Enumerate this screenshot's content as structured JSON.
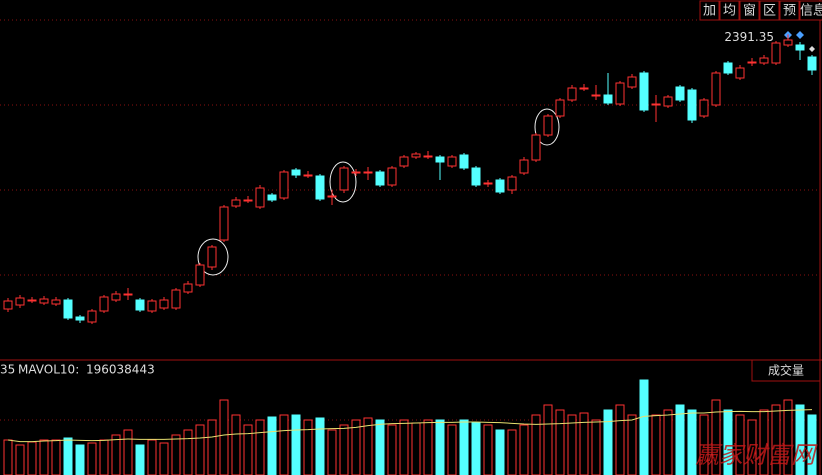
{
  "chart_data": {
    "type": "candlestick",
    "buttons": [
      "加",
      "均",
      "窗",
      "区",
      "预",
      "信息"
    ],
    "open": [
      1842,
      1850,
      1860,
      1854,
      1852,
      1860,
      1826,
      1816,
      1838,
      1860,
      1872,
      1860,
      1838,
      1844,
      1844,
      1876,
      1890,
      1926,
      1980,
      2048,
      2060,
      2046,
      2070,
      2064,
      2120,
      2110,
      2108,
      2068,
      2080,
      2116,
      2116,
      2116,
      2090,
      2128,
      2146,
      2148,
      2146,
      2128,
      2150,
      2124,
      2094,
      2100,
      2080,
      2114,
      2140,
      2190,
      2228,
      2260,
      2284,
      2270,
      2270,
      2252,
      2286,
      2314,
      2252,
      2248,
      2286,
      2280,
      2228,
      2250,
      2334,
      2304,
      2336,
      2334,
      2334,
      2370,
      2370,
      2346
    ],
    "high": [
      1864,
      1870,
      1866,
      1868,
      1866,
      1864,
      1830,
      1842,
      1870,
      1878,
      1884,
      1864,
      1862,
      1866,
      1884,
      1898,
      1934,
      1970,
      2050,
      2066,
      2068,
      2090,
      2074,
      2120,
      2124,
      2118,
      2112,
      2080,
      2128,
      2122,
      2126,
      2120,
      2128,
      2150,
      2156,
      2158,
      2150,
      2150,
      2154,
      2128,
      2100,
      2104,
      2110,
      2146,
      2194,
      2232,
      2264,
      2290,
      2292,
      2290,
      2314,
      2298,
      2312,
      2318,
      2270,
      2270,
      2290,
      2284,
      2264,
      2318,
      2338,
      2330,
      2344,
      2350,
      2378,
      2391.35,
      2376,
      2350
    ],
    "low": [
      1836,
      1844,
      1854,
      1850,
      1848,
      1820,
      1814,
      1812,
      1834,
      1856,
      1860,
      1836,
      1834,
      1840,
      1840,
      1872,
      1886,
      1920,
      1976,
      2044,
      2054,
      2042,
      2056,
      2060,
      2104,
      2104,
      2058,
      2050,
      2074,
      2108,
      2100,
      2086,
      2086,
      2124,
      2142,
      2142,
      2100,
      2124,
      2120,
      2086,
      2086,
      2072,
      2072,
      2110,
      2136,
      2186,
      2224,
      2256,
      2278,
      2260,
      2250,
      2248,
      2282,
      2236,
      2216,
      2244,
      2256,
      2214,
      2224,
      2246,
      2310,
      2300,
      2328,
      2330,
      2330,
      2366,
      2340,
      2310
    ],
    "close": [
      1858,
      1864,
      1860,
      1862,
      1860,
      1824,
      1820,
      1838,
      1866,
      1872,
      1872,
      1840,
      1858,
      1860,
      1880,
      1892,
      1930,
      1966,
      2046,
      2060,
      2060,
      2084,
      2060,
      2116,
      2110,
      2110,
      2062,
      2068,
      2124,
      2116,
      2116,
      2090,
      2124,
      2146,
      2152,
      2148,
      2136,
      2146,
      2124,
      2090,
      2094,
      2076,
      2106,
      2140,
      2190,
      2228,
      2260,
      2284,
      2284,
      2270,
      2254,
      2294,
      2306,
      2240,
      2252,
      2266,
      2260,
      2220,
      2260,
      2314,
      2314,
      2324,
      2336,
      2344,
      2374,
      2380,
      2360,
      2320
    ],
    "volume": [
      105000000,
      90000000,
      99000000,
      105000000,
      105000000,
      111000000,
      90000000,
      96000000,
      105000000,
      120000000,
      135000000,
      90000000,
      105000000,
      96000000,
      120000000,
      135000000,
      150000000,
      165000000,
      225000000,
      180000000,
      150000000,
      165000000,
      174000000,
      180000000,
      180000000,
      165000000,
      171000000,
      135000000,
      150000000,
      165000000,
      171000000,
      165000000,
      150000000,
      165000000,
      156000000,
      165000000,
      165000000,
      150000000,
      165000000,
      156000000,
      150000000,
      135000000,
      135000000,
      150000000,
      180000000,
      210000000,
      195000000,
      180000000,
      186000000,
      165000000,
      195000000,
      210000000,
      180000000,
      285000000,
      180000000,
      195000000,
      210000000,
      195000000,
      180000000,
      225000000,
      195000000,
      180000000,
      165000000,
      195000000,
      210000000,
      225000000,
      210000000,
      180000000
    ],
    "mavol10": [
      105000000,
      100000000,
      100000000,
      102000000,
      103000000,
      105000000,
      104000000,
      103000000,
      104000000,
      106000000,
      108000000,
      107000000,
      107000000,
      107000000,
      108000000,
      109000000,
      111000000,
      114000000,
      120000000,
      123000000,
      124000000,
      127000000,
      130000000,
      133000000,
      135000000,
      136000000,
      138000000,
      139000000,
      140000000,
      143000000,
      148000000,
      152000000,
      154000000,
      155000000,
      156000000,
      157000000,
      158000000,
      158000000,
      159000000,
      159000000,
      158000000,
      157000000,
      155000000,
      153000000,
      152000000,
      153000000,
      154000000,
      156000000,
      158000000,
      159000000,
      160000000,
      163000000,
      165000000,
      176000000,
      178000000,
      180000000,
      183000000,
      186000000,
      186000000,
      189000000,
      190000000,
      191000000,
      190000000,
      190000000,
      192000000,
      194000000,
      195000000,
      196038443
    ],
    "ylim": [
      1750,
      2460
    ],
    "vlim": [
      0,
      300000000
    ],
    "up_color": "#ff3232",
    "down_color": "#54ffff",
    "ma_color": "#e8e070",
    "cut_label": "35",
    "mavol10_label": "MAVOL10:",
    "volume_title": "成交量",
    "watermark": "赢家财富网"
  }
}
